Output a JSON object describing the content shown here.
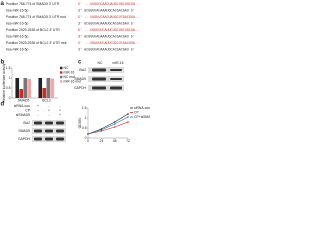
{
  "panel_a": {
    "label": "a",
    "rows": [
      {
        "name": "Position 768-774 of SMAD5 3' UTR",
        "seq": "5' ...UUGUUCAACUAUGCUGCUGCUA..."
      },
      {
        "name": "hsa-miR-16-5p",
        "seq": "3' GCGGUUAUAAAUGCACGACGAU 5'"
      },
      {
        "name": "Position 768-774 of SMAD5 3' UTR mut",
        "seq": "5' ...UUGUUCAACUAUGCUCGACGUA..."
      },
      {
        "name": "hsa-miR-16-5p",
        "seq": "3' GCGGUUAUAAAUGCACGACGAU 5'"
      },
      {
        "name": "Position 2529-2536 of BCL2 3' UTR",
        "seq": "5' ...UGUUUUCAUUCUGCUGCUGCUA..."
      },
      {
        "name": "hsa-miR-16-5p",
        "seq": "3' GCGGUUAUAAAUGCACGACGAU 5'"
      },
      {
        "name": "Position 2529-2536 of BCL2 3' UTR mut",
        "seq": "5' ...UGUUUUCAUUCUGCUCGACGUA..."
      },
      {
        "name": "hsa-miR-16-5p",
        "seq": "3' GCGGUUAUAAAUGCACGACGAU 5'"
      }
    ]
  },
  "panel_c": {
    "label": "c",
    "columns": [
      "NC",
      "miR-16"
    ],
    "rows": [
      "Bcl2",
      "SMAD5",
      "GAPDH"
    ]
  },
  "panel_d_blot": {
    "label": "d",
    "conditions": [
      {
        "name": "siRNA-con",
        "marks": [
          "+",
          "-",
          "-"
        ]
      },
      {
        "name": "CP",
        "marks": [
          "-",
          "+",
          "+"
        ]
      },
      {
        "name": "siSMAD5",
        "marks": [
          "-",
          "-",
          "+"
        ]
      }
    ],
    "rows": [
      "Bcl2",
      "SMAD5",
      "GAPDH"
    ]
  },
  "chart_data": [
    {
      "type": "bar",
      "label": "b",
      "y_label": "Relative luciferase activity",
      "categories": [
        "SMAD5",
        "BCL2"
      ],
      "series": [
        {
          "name": "NC",
          "color": "#222222",
          "values": [
            1.0,
            1.0
          ]
        },
        {
          "name": "miR-16",
          "color": "#d62728",
          "values": [
            0.45,
            0.5
          ]
        },
        {
          "name": "NC mut",
          "color": "#777777",
          "values": [
            1.0,
            1.0
          ]
        },
        {
          "name": "miR-16 mut",
          "color": "#f4a6a6",
          "values": [
            0.95,
            0.97
          ]
        }
      ],
      "ylim": [
        0,
        1.5
      ],
      "yticks": [
        0,
        0.5,
        1,
        1.5
      ]
    },
    {
      "type": "line",
      "y_label": "OD450",
      "x": [
        0,
        24,
        48,
        72
      ],
      "series": [
        {
          "name": "siRNA-con",
          "color": "#222222",
          "values": [
            0.2,
            0.45,
            0.8,
            1.2
          ]
        },
        {
          "name": "CP",
          "color": "#d62728",
          "values": [
            0.2,
            0.35,
            0.55,
            0.8
          ]
        },
        {
          "name": "CP+siSMAD5",
          "color": "#1f77b4",
          "values": [
            0.2,
            0.4,
            0.7,
            1.05
          ]
        }
      ],
      "xlim": [
        0,
        72
      ],
      "xticks": [
        0,
        24,
        48,
        72
      ],
      "ylim": [
        0,
        1.5
      ],
      "yticks": [
        0,
        0.5,
        1,
        1.5
      ]
    }
  ]
}
